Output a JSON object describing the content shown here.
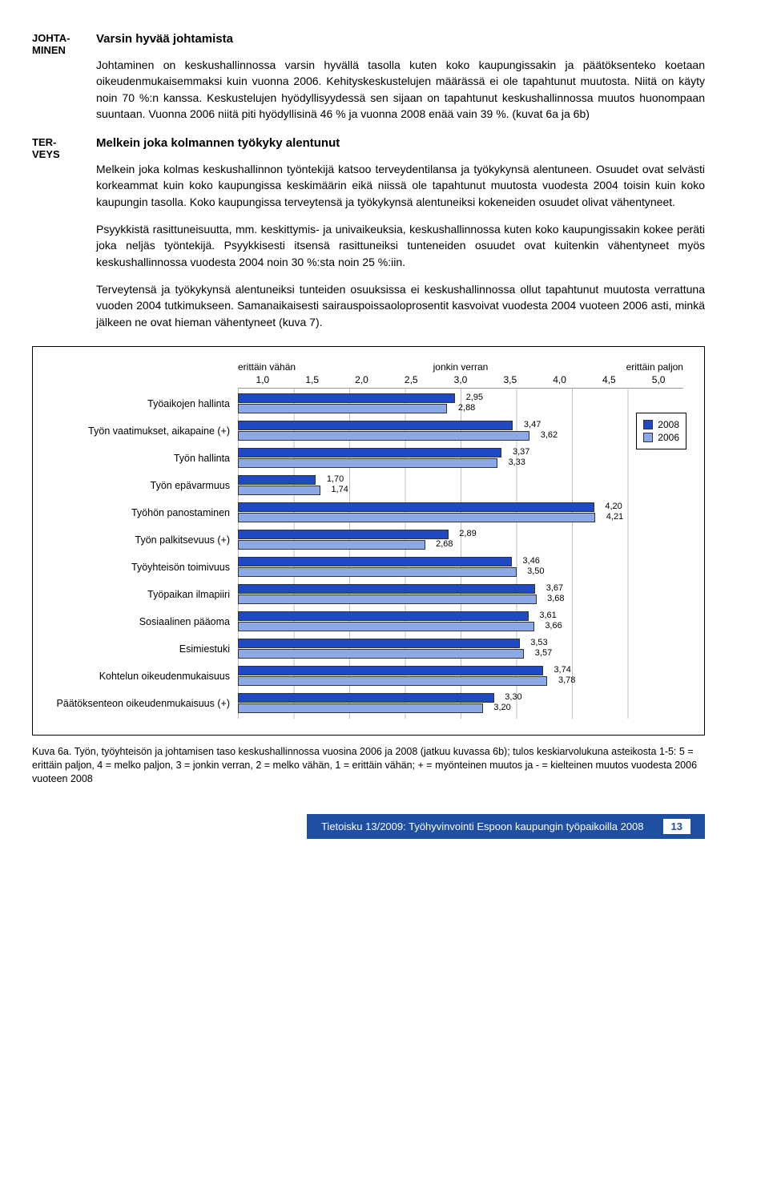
{
  "sections": {
    "johtaminen": {
      "label": "JOHTA-\nMINEN",
      "heading": "Varsin hyvää johtamista",
      "para": "Johtaminen on keskushallinnossa varsin hyvällä tasolla kuten koko kaupungissakin ja päätöksenteko koetaan oikeudenmukaisemmaksi kuin vuonna 2006. Kehityskeskustelujen määrässä ei ole tapahtunut muutosta. Niitä on käyty noin 70 %:n kanssa. Keskustelujen hyödyllisyydessä sen sijaan on tapahtunut keskushallinnossa muutos huonompaan suuntaan. Vuonna 2006 niitä piti hyödyllisinä 46 % ja vuonna 2008 enää vain 39 %. (kuvat 6a ja 6b)"
    },
    "terveys": {
      "label": "TER-\nVEYS",
      "heading": "Melkein joka kolmannen työkyky alentunut",
      "paras": [
        "Melkein joka kolmas keskushallinnon työntekijä katsoo terveydentilansa ja työkykynsä alentuneen. Osuudet ovat selvästi korkeammat kuin koko kaupungissa keskimäärin eikä niissä ole tapahtunut muutosta vuodesta 2004 toisin kuin koko kaupungin tasolla. Koko kaupungissa terveytensä ja työkykynsä alentuneiksi kokeneiden osuudet olivat vähentyneet.",
        "Psyykkistä rasittuneisuutta, mm. keskittymis- ja univaikeuksia, keskushallinnossa kuten koko kaupungissakin kokee peräti joka neljäs työntekijä. Psyykkisesti itsensä rasittuneiksi tunteneiden osuudet ovat kuitenkin vähentyneet myös keskushallinnossa vuodesta 2004 noin 30 %:sta noin 25 %:iin.",
        "Terveytensä ja työkykynsä alentuneiksi tunteiden osuuksissa ei keskushallinnossa ollut tapahtunut muutosta verrattuna vuoden 2004 tutkimukseen. Samanaikaisesti sairauspoissaoloprosentit kasvoivat vuodesta 2004 vuoteen 2006 asti, minkä jälkeen ne ovat hieman vähentyneet (kuva 7)."
      ]
    }
  },
  "chart": {
    "scale_left": "erittäin vähän",
    "scale_mid": "jonkin verran",
    "scale_right": "erittäin paljon",
    "ticks": [
      "1,0",
      "1,5",
      "2,0",
      "2,5",
      "3,0",
      "3,5",
      "4,0",
      "4,5",
      "5,0"
    ],
    "xmin": 1.0,
    "xmax": 5.0,
    "series": [
      {
        "year": "2008",
        "color": "#1f49c4"
      },
      {
        "year": "2006",
        "color": "#8aa9e6"
      }
    ],
    "rows": [
      {
        "label": "Työaikojen hallinta",
        "v2008": 2.95,
        "v2006": 2.88
      },
      {
        "label": "Työn vaatimukset, aikapaine (+)",
        "v2008": 3.47,
        "v2006": 3.62
      },
      {
        "label": "Työn hallinta",
        "v2008": 3.37,
        "v2006": 3.33
      },
      {
        "label": "Työn epävarmuus",
        "v2008": 1.7,
        "v2006": 1.74
      },
      {
        "label": "Työhön panostaminen",
        "v2008": 4.2,
        "v2006": 4.21
      },
      {
        "label": "Työn palkitsevuus (+)",
        "v2008": 2.89,
        "v2006": 2.68
      },
      {
        "label": "Työyhteisön toimivuus",
        "v2008": 3.46,
        "v2006": 3.5
      },
      {
        "label": "Työpaikan ilmapiiri",
        "v2008": 3.67,
        "v2006": 3.68
      },
      {
        "label": "Sosiaalinen pääoma",
        "v2008": 3.61,
        "v2006": 3.66
      },
      {
        "label": "Esimiestuki",
        "v2008": 3.53,
        "v2006": 3.57
      },
      {
        "label": "Kohtelun oikeudenmukaisuus",
        "v2008": 3.74,
        "v2006": 3.78
      },
      {
        "label": "Päätöksenteon oikeudenmukaisuus (+)",
        "v2008": 3.3,
        "v2006": 3.2
      }
    ]
  },
  "caption": "Kuva 6a. Työn, työyhteisön ja johtamisen taso keskushallinnossa vuosina 2006 ja 2008 (jatkuu kuvassa 6b); tulos keskiarvolukuna asteikosta 1-5: 5 = erittäin paljon, 4 = melko paljon, 3 = jonkin verran, 2 = melko vähän, 1 = erittäin vähän; + = myönteinen muutos ja - = kielteinen muutos vuodesta 2006 vuoteen 2008",
  "footer": {
    "text": "Tietoisku 13/2009: Työhyvinvointi Espoon kaupungin työpaikoilla 2008",
    "page": "13"
  }
}
